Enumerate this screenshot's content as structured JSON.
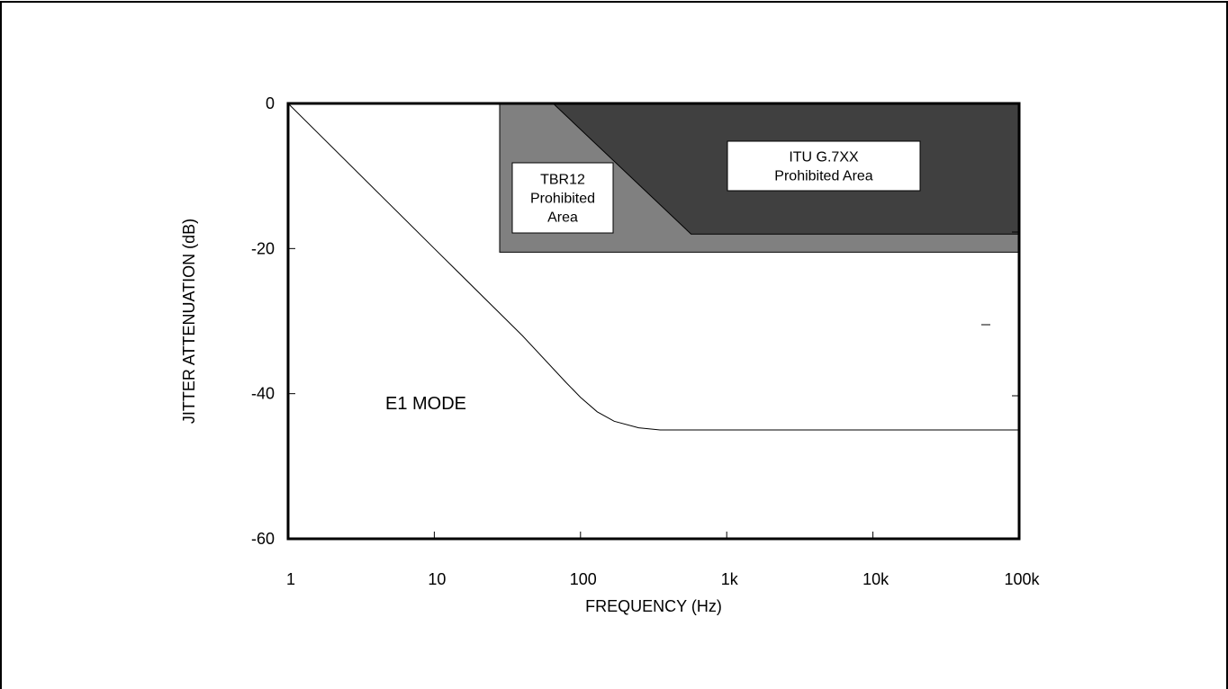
{
  "chart_data": {
    "type": "line",
    "x_scale": "log",
    "xlim": [
      1,
      100000
    ],
    "ylim": [
      -60,
      0
    ],
    "xlabel": "FREQUENCY (Hz)",
    "ylabel": "JITTER ATTENUATION (dB)",
    "x_ticks": [
      {
        "value": 1,
        "label": "1"
      },
      {
        "value": 10,
        "label": "10"
      },
      {
        "value": 100,
        "label": "100"
      },
      {
        "value": 1000,
        "label": "1k"
      },
      {
        "value": 10000,
        "label": "10k"
      },
      {
        "value": 100000,
        "label": "100k"
      }
    ],
    "y_ticks": [
      {
        "value": 0,
        "label": "0"
      },
      {
        "value": -20,
        "label": "-20"
      },
      {
        "value": -40,
        "label": "-40"
      },
      {
        "value": -60,
        "label": "-60"
      }
    ],
    "grid": false,
    "series": [
      {
        "name": "E1 MODE",
        "x": [
          1,
          10,
          40,
          80,
          100,
          130,
          170,
          250,
          350,
          500,
          1000,
          10000,
          100000
        ],
        "y": [
          0,
          -20,
          -32,
          -38.5,
          -40.5,
          -42.5,
          -43.8,
          -44.7,
          -45,
          -45,
          -45,
          -45,
          -45
        ]
      }
    ],
    "regions": [
      {
        "label": [
          "TBR12",
          "Prohibited",
          "Area"
        ],
        "color": "#808080",
        "x": [
          28,
          65,
          100000,
          100000,
          28
        ],
        "y": [
          0,
          0,
          0,
          -20.5,
          -20.5
        ]
      },
      {
        "label": [
          "ITU G.7XX",
          "Prohibited Area"
        ],
        "color": "#404040",
        "x": [
          65,
          100000,
          100000,
          570
        ],
        "y": [
          0,
          0,
          -18,
          -18
        ]
      }
    ]
  }
}
